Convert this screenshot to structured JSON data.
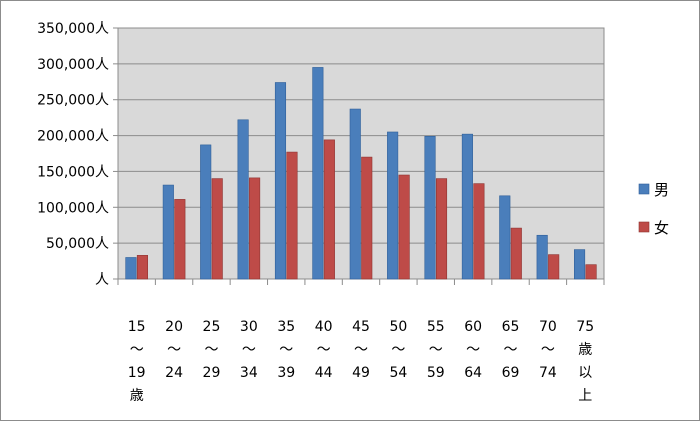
{
  "chart_data": {
    "type": "bar",
    "title": "",
    "xlabel": "",
    "ylabel": "",
    "ylim": [
      0,
      350000
    ],
    "grid": true,
    "legend_position": "right",
    "y_tick_labels": [
      "人",
      "50,000人",
      "100,000人",
      "150,000人",
      "200,000人",
      "250,000人",
      "300,000人",
      "350,000人"
    ],
    "categories": [
      [
        "15",
        "～",
        "19",
        "歳"
      ],
      [
        "20",
        "～",
        "24"
      ],
      [
        "25",
        "～",
        "29"
      ],
      [
        "30",
        "～",
        "34"
      ],
      [
        "35",
        "～",
        "39"
      ],
      [
        "40",
        "～",
        "44"
      ],
      [
        "45",
        "～",
        "49"
      ],
      [
        "50",
        "～",
        "54"
      ],
      [
        "55",
        "～",
        "59"
      ],
      [
        "60",
        "～",
        "64"
      ],
      [
        "65",
        "～",
        "69"
      ],
      [
        "70",
        "～",
        "74"
      ],
      [
        "75",
        "歳",
        "以",
        "上"
      ]
    ],
    "series": [
      {
        "name": "男",
        "color": "#4a7ebb",
        "values": [
          30000,
          131000,
          187000,
          222000,
          274000,
          295000,
          237000,
          205000,
          199000,
          202000,
          116000,
          61000,
          41000
        ]
      },
      {
        "name": "女",
        "color": "#be4b48",
        "values": [
          33000,
          111000,
          140000,
          141000,
          177000,
          194000,
          170000,
          145000,
          140000,
          133000,
          71000,
          34000,
          20000
        ]
      }
    ]
  }
}
